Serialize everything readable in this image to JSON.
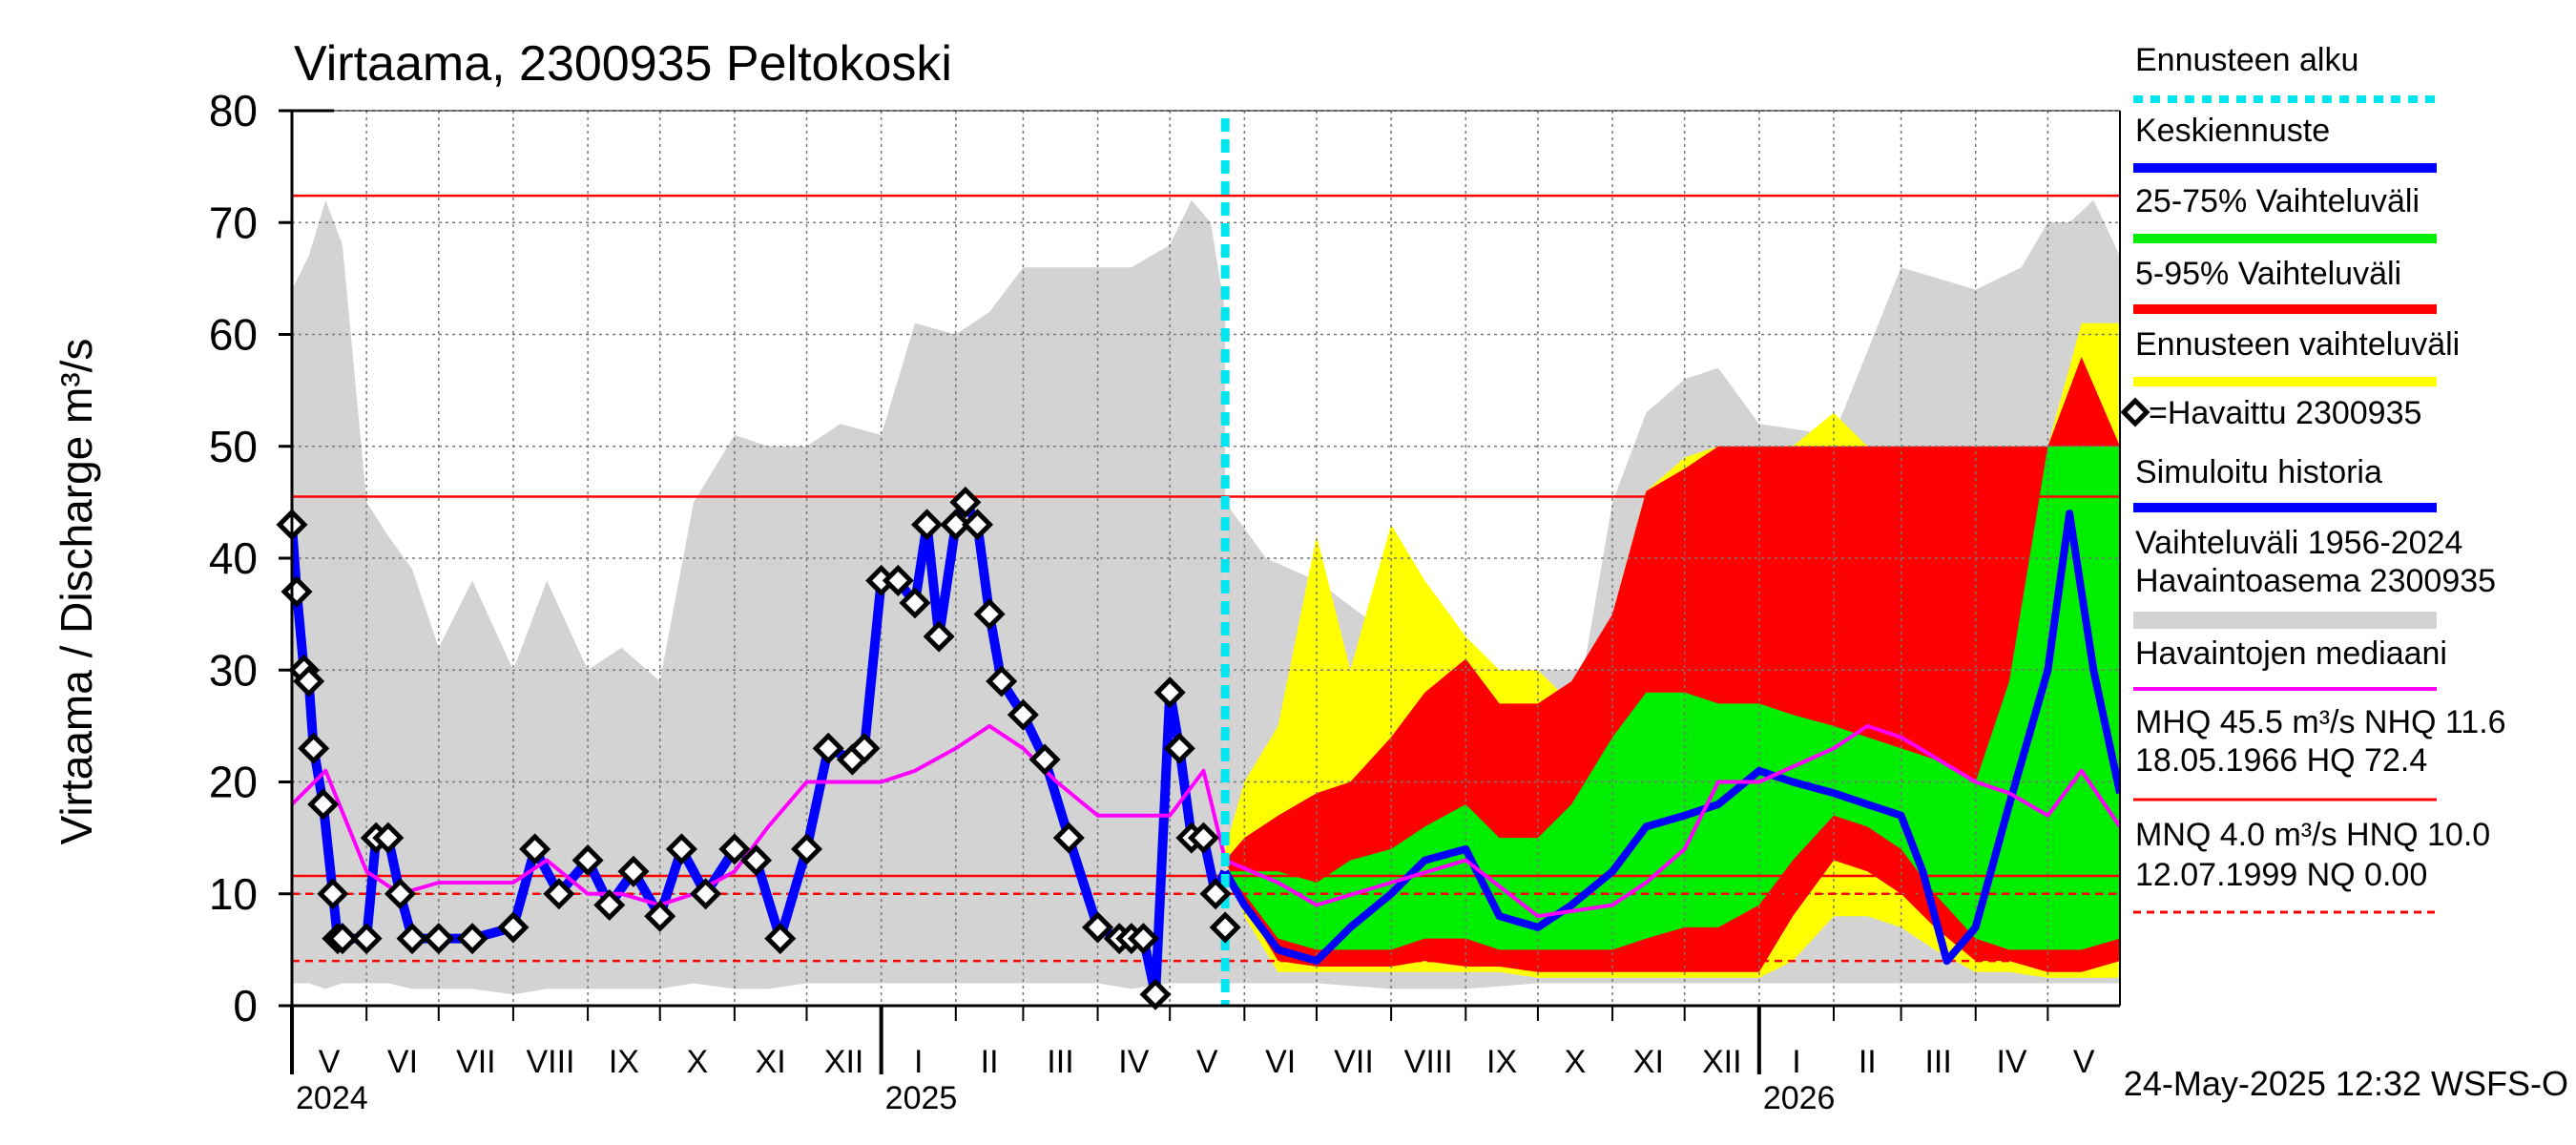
{
  "chart_data": {
    "type": "area",
    "title": "Virtaama, 2300935 Peltokoski",
    "ylabel": "Virtaama / Discharge    m³/s",
    "ylim": [
      0,
      80
    ],
    "yticks": [
      0,
      10,
      20,
      30,
      40,
      50,
      60,
      70,
      80
    ],
    "x_start": "2024-05-01",
    "x_end": "2026-05-31",
    "month_labels": [
      "V",
      "VI",
      "VII",
      "VIII",
      "IX",
      "X",
      "XI",
      "XII",
      "I",
      "II",
      "III",
      "IV",
      "V",
      "VI",
      "VII",
      "VIII",
      "IX",
      "X",
      "XI",
      "XII",
      "I",
      "II",
      "III",
      "IV",
      "V"
    ],
    "year_labels": [
      {
        "date": "2024-05-01",
        "label": "2024"
      },
      {
        "date": "2025-01-01",
        "label": "2025"
      },
      {
        "date": "2026-01-01",
        "label": "2026"
      }
    ],
    "forecast_start": "2025-05-24",
    "timestamp": "24-May-2025 12:32 WSFS-O",
    "reference_lines": {
      "HQ": 72.4,
      "MHQ": 45.5,
      "NHQ": 11.6,
      "HNQ": 10.0,
      "MNQ": 4.0,
      "NQ": 0.0
    },
    "legend": [
      {
        "label": "Ennusteen alku",
        "color": "#00e5ee",
        "style": "dotted"
      },
      {
        "label": "Keskiennuste",
        "color": "#0000ff",
        "style": "solid"
      },
      {
        "label": "25-75% Vaihteluväli",
        "color": "#00ee00",
        "style": "solid"
      },
      {
        "label": "5-95% Vaihteluväli",
        "color": "#ff0000",
        "style": "solid"
      },
      {
        "label": "Ennusteen vaihteluväli",
        "color": "#ffff00",
        "style": "solid"
      },
      {
        "label": "=Havaittu 2300935",
        "color": "#000000",
        "style": "marker"
      },
      {
        "label": "Simuloitu historia",
        "color": "#0000ff",
        "style": "solid"
      },
      {
        "label": "Vaihteluväli 1956-2024",
        "label2": " Havaintoasema 2300935",
        "color": "#d3d3d3",
        "style": "solid"
      },
      {
        "label": "Havaintojen mediaani",
        "color": "#ff00ff",
        "style": "solid"
      },
      {
        "label": "MHQ 45.5 m³/s NHQ 11.6",
        "label2": "18.05.1966 HQ 72.4",
        "color": "#ff0000",
        "style": "solid"
      },
      {
        "label": "MNQ  4.0 m³/s HNQ 10.0",
        "label2": "12.07.1999 NQ 0.00",
        "color": "#ff0000",
        "style": "dashed"
      }
    ],
    "series": {
      "range_1956_2024": {
        "dates": [
          "2024-05-01",
          "2024-05-08",
          "2024-05-15",
          "2024-05-22",
          "2024-06-01",
          "2024-06-10",
          "2024-06-20",
          "2024-07-01",
          "2024-07-15",
          "2024-08-01",
          "2024-08-15",
          "2024-09-01",
          "2024-09-15",
          "2024-10-01",
          "2024-10-15",
          "2024-11-01",
          "2024-11-15",
          "2024-12-01",
          "2024-12-15",
          "2025-01-01",
          "2025-01-15",
          "2025-02-01",
          "2025-02-15",
          "2025-03-01",
          "2025-03-15",
          "2025-04-01",
          "2025-04-15",
          "2025-05-01",
          "2025-05-10",
          "2025-05-18",
          "2025-05-24"
        ],
        "upper": [
          64,
          67,
          72,
          68,
          45,
          42,
          39,
          32,
          38,
          30,
          38,
          30,
          32,
          29,
          45,
          51,
          50,
          50,
          52,
          51,
          61,
          60,
          62,
          66,
          66,
          66,
          66,
          68,
          72,
          70,
          62
        ],
        "lower": [
          2,
          2,
          1.5,
          2,
          2,
          2,
          1.5,
          1.5,
          1.5,
          1,
          1.5,
          1.5,
          1.5,
          1.5,
          2,
          1.5,
          1.5,
          2,
          2,
          2,
          2,
          2,
          2,
          2,
          2,
          2,
          1.5,
          2,
          2,
          2,
          2
        ]
      },
      "range_1956_2024_future": {
        "dates": [
          "2025-05-24",
          "2025-06-10",
          "2025-07-01",
          "2025-08-01",
          "2025-09-01",
          "2025-10-01",
          "2025-10-20",
          "2025-11-01",
          "2025-11-15",
          "2025-12-01",
          "2025-12-15",
          "2026-01-01",
          "2026-02-01",
          "2026-03-01",
          "2026-04-01",
          "2026-04-20",
          "2026-05-01",
          "2026-05-10",
          "2026-05-20",
          "2026-05-31"
        ],
        "upper": [
          45,
          40,
          38,
          33,
          30,
          30,
          30,
          45,
          53,
          56,
          57,
          52,
          51,
          66,
          64,
          66,
          70,
          70,
          72,
          67
        ],
        "lower": [
          2,
          2,
          2,
          1.5,
          1.5,
          2,
          2,
          2,
          2,
          2,
          2,
          2,
          2,
          2,
          2,
          2,
          2,
          2,
          2,
          2
        ]
      },
      "forecast_range": {
        "dates": [
          "2025-05-24",
          "2025-06-01",
          "2025-06-15",
          "2025-07-01",
          "2025-07-15",
          "2025-08-01",
          "2025-08-15",
          "2025-09-01",
          "2025-09-15",
          "2025-10-01",
          "2025-10-15",
          "2025-11-01",
          "2025-11-15",
          "2025-12-01",
          "2025-12-15",
          "2026-01-01",
          "2026-01-15",
          "2026-02-01",
          "2026-02-15",
          "2026-03-01",
          "2026-03-15",
          "2026-04-01",
          "2026-04-15",
          "2026-05-01",
          "2026-05-15",
          "2026-05-31"
        ],
        "upper": [
          14,
          20,
          25,
          42,
          30,
          43,
          38,
          33,
          30,
          30,
          27,
          35,
          46,
          49,
          50,
          50,
          50,
          53,
          50,
          50,
          50,
          50,
          50,
          50,
          61,
          61
        ],
        "lower": [
          13,
          8,
          3,
          3,
          3,
          3,
          3,
          3,
          3,
          2.5,
          2.5,
          2.5,
          2.5,
          2.5,
          2.5,
          2.5,
          4,
          8,
          8,
          7,
          5,
          3,
          3,
          2.5,
          2.5,
          2.5
        ]
      },
      "range_5_95": {
        "dates": [
          "2025-05-24",
          "2025-06-01",
          "2025-06-15",
          "2025-07-01",
          "2025-07-15",
          "2025-08-01",
          "2025-08-15",
          "2025-09-01",
          "2025-09-15",
          "2025-10-01",
          "2025-10-15",
          "2025-11-01",
          "2025-11-15",
          "2025-12-01",
          "2025-12-15",
          "2026-01-01",
          "2026-01-15",
          "2026-02-01",
          "2026-02-15",
          "2026-03-01",
          "2026-03-15",
          "2026-04-01",
          "2026-04-15",
          "2026-05-01",
          "2026-05-15",
          "2026-05-31"
        ],
        "upper": [
          13,
          15,
          17,
          19,
          20,
          24,
          28,
          31,
          27,
          27,
          29,
          35,
          46,
          48,
          50,
          50,
          50,
          50,
          50,
          50,
          50,
          50,
          50,
          50,
          58,
          50
        ],
        "lower": [
          13,
          9,
          4,
          3.5,
          3.5,
          3.5,
          4,
          3.5,
          3.5,
          3,
          3,
          3,
          3,
          3,
          3,
          3,
          8,
          13,
          12,
          10,
          7,
          4,
          4,
          3,
          3,
          4
        ]
      },
      "range_25_75": {
        "dates": [
          "2025-05-24",
          "2025-06-01",
          "2025-06-15",
          "2025-07-01",
          "2025-07-15",
          "2025-08-01",
          "2025-08-15",
          "2025-09-01",
          "2025-09-15",
          "2025-10-01",
          "2025-10-15",
          "2025-11-01",
          "2025-11-15",
          "2025-12-01",
          "2025-12-15",
          "2026-01-01",
          "2026-01-15",
          "2026-02-01",
          "2026-02-15",
          "2026-03-01",
          "2026-03-15",
          "2026-04-01",
          "2026-04-15",
          "2026-05-01",
          "2026-05-15",
          "2026-05-31"
        ],
        "upper": [
          12,
          12,
          12,
          11,
          13,
          14,
          16,
          18,
          15,
          15,
          18,
          24,
          28,
          28,
          27,
          27,
          26,
          25,
          24,
          23,
          22,
          20,
          29,
          50,
          50,
          50
        ],
        "lower": [
          12,
          10,
          6,
          5,
          5,
          5,
          6,
          6,
          5,
          5,
          5,
          5,
          6,
          7,
          7,
          9,
          13,
          17,
          16,
          14,
          10,
          6,
          5,
          5,
          5,
          6
        ]
      },
      "mean_forecast": {
        "dates": [
          "2025-05-24",
          "2025-06-01",
          "2025-06-15",
          "2025-07-01",
          "2025-07-15",
          "2025-08-01",
          "2025-08-15",
          "2025-09-01",
          "2025-09-15",
          "2025-10-01",
          "2025-10-15",
          "2025-11-01",
          "2025-11-15",
          "2025-12-01",
          "2025-12-15",
          "2026-01-01",
          "2026-01-15",
          "2026-02-01",
          "2026-02-15",
          "2026-03-01",
          "2026-03-10",
          "2026-03-20",
          "2026-04-01",
          "2026-04-15",
          "2026-05-01",
          "2026-05-10",
          "2026-05-20",
          "2026-05-31"
        ],
        "values": [
          12,
          9,
          5,
          4,
          7,
          10,
          13,
          14,
          8,
          7,
          9,
          12,
          16,
          17,
          18,
          21,
          20,
          19,
          18,
          17,
          12,
          4,
          7,
          18,
          30,
          44,
          30,
          19
        ]
      },
      "median": {
        "dates": [
          "2024-05-01",
          "2024-05-15",
          "2024-06-01",
          "2024-06-15",
          "2024-07-01",
          "2024-08-01",
          "2024-08-15",
          "2024-09-01",
          "2024-09-15",
          "2024-10-01",
          "2024-10-15",
          "2024-11-01",
          "2024-11-15",
          "2024-12-01",
          "2024-12-15",
          "2025-01-01",
          "2025-01-15",
          "2025-02-01",
          "2025-02-15",
          "2025-03-01",
          "2025-03-15",
          "2025-04-01",
          "2025-04-15",
          "2025-05-01",
          "2025-05-15",
          "2025-05-24",
          "2025-06-15",
          "2025-07-01",
          "2025-08-01",
          "2025-09-01",
          "2025-10-01",
          "2025-11-01",
          "2025-11-15",
          "2025-12-01",
          "2025-12-15",
          "2026-01-01",
          "2026-02-01",
          "2026-02-15",
          "2026-03-01",
          "2026-04-01",
          "2026-04-15",
          "2026-05-01",
          "2026-05-15",
          "2026-05-31"
        ],
        "values": [
          18,
          21,
          12,
          10,
          11,
          11,
          13,
          10,
          10,
          9,
          10,
          12,
          16,
          20,
          20,
          20,
          21,
          23,
          25,
          23,
          20,
          17,
          17,
          17,
          21,
          13,
          11,
          9,
          11,
          13,
          8,
          9,
          11,
          14,
          20,
          20,
          23,
          25,
          24,
          20,
          19,
          17,
          21,
          16
        ]
      },
      "observed": {
        "dates": [
          "2024-05-01",
          "2024-05-03",
          "2024-05-06",
          "2024-05-08",
          "2024-05-10",
          "2024-05-14",
          "2024-05-18",
          "2024-05-20",
          "2024-05-22",
          "2024-06-01",
          "2024-06-05",
          "2024-06-10",
          "2024-06-15",
          "2024-06-20",
          "2024-07-01",
          "2024-07-15",
          "2024-08-01",
          "2024-08-10",
          "2024-08-20",
          "2024-09-01",
          "2024-09-10",
          "2024-09-20",
          "2024-10-01",
          "2024-10-10",
          "2024-10-20",
          "2024-11-01",
          "2024-11-10",
          "2024-11-20",
          "2024-12-01",
          "2024-12-10",
          "2024-12-20",
          "2024-12-25",
          "2025-01-01",
          "2025-01-08",
          "2025-01-15",
          "2025-01-20",
          "2025-01-25",
          "2025-02-01",
          "2025-02-05",
          "2025-02-10",
          "2025-02-15",
          "2025-02-20",
          "2025-03-01",
          "2025-03-10",
          "2025-03-20",
          "2025-04-01",
          "2025-04-10",
          "2025-04-15",
          "2025-04-20",
          "2025-04-25",
          "2025-05-01",
          "2025-05-05",
          "2025-05-10",
          "2025-05-15",
          "2025-05-20",
          "2025-05-24"
        ],
        "values": [
          43,
          37,
          30,
          29,
          23,
          18,
          10,
          6,
          6,
          6,
          15,
          15,
          10,
          6,
          6,
          6,
          7,
          14,
          10,
          13,
          9,
          12,
          8,
          14,
          10,
          14,
          13,
          6,
          14,
          23,
          22,
          23,
          38,
          38,
          36,
          43,
          33,
          43,
          45,
          43,
          35,
          29,
          26,
          22,
          15,
          7,
          6,
          6,
          6,
          1,
          28,
          23,
          15,
          15,
          10,
          7
        ]
      },
      "simulated_history": {
        "dates": [
          "2024-05-01",
          "2024-05-03",
          "2024-05-06",
          "2024-05-08",
          "2024-05-10",
          "2024-05-14",
          "2024-05-18",
          "2024-05-20",
          "2024-05-22",
          "2024-06-01",
          "2024-06-05",
          "2024-06-10",
          "2024-06-15",
          "2024-06-20",
          "2024-07-01",
          "2024-07-15",
          "2024-08-01",
          "2024-08-10",
          "2024-08-20",
          "2024-09-01",
          "2024-09-10",
          "2024-09-20",
          "2024-10-01",
          "2024-10-10",
          "2024-10-20",
          "2024-11-01",
          "2024-11-10",
          "2024-11-20",
          "2024-12-01",
          "2024-12-10",
          "2024-12-20",
          "2024-12-25",
          "2025-01-01",
          "2025-01-08",
          "2025-01-15",
          "2025-01-20",
          "2025-01-25",
          "2025-02-01",
          "2025-02-05",
          "2025-02-10",
          "2025-02-15",
          "2025-02-20",
          "2025-03-01",
          "2025-03-10",
          "2025-03-20",
          "2025-04-01",
          "2025-04-10",
          "2025-04-15",
          "2025-04-20",
          "2025-04-25",
          "2025-05-01",
          "2025-05-05",
          "2025-05-10",
          "2025-05-15",
          "2025-05-20",
          "2025-05-24"
        ],
        "values": [
          43,
          37,
          30,
          29,
          23,
          18,
          10,
          6,
          6,
          6,
          15,
          15,
          10,
          6,
          6,
          6,
          7,
          14,
          10,
          13,
          9,
          12,
          8,
          14,
          10,
          14,
          13,
          6,
          14,
          23,
          22,
          23,
          38,
          38,
          36,
          43,
          33,
          43,
          45,
          43,
          35,
          29,
          26,
          22,
          15,
          7,
          6,
          6,
          6,
          1,
          28,
          23,
          15,
          15,
          10,
          12
        ]
      }
    }
  }
}
